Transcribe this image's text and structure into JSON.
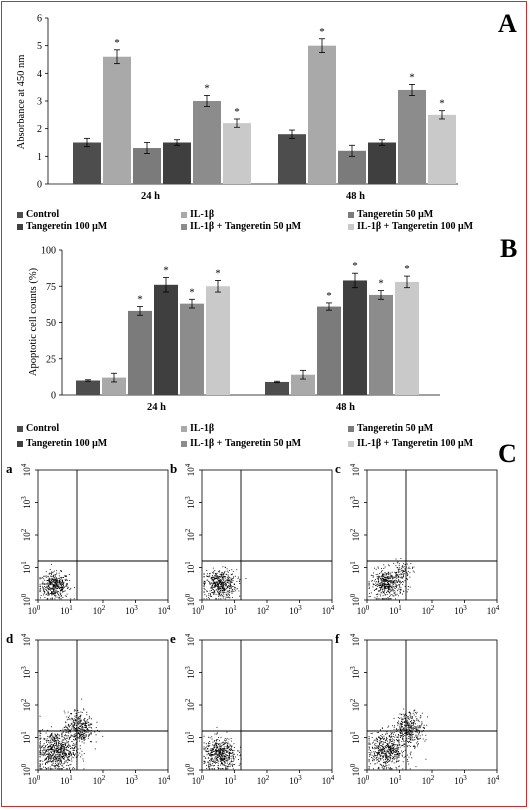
{
  "colors": {
    "frame": "#d42a2a",
    "series": [
      "#4d4d4d",
      "#a9a9a9",
      "#7b7b7b",
      "#3f3f3f",
      "#8c8c8c",
      "#c9c9c9"
    ],
    "flow_points": "#000000"
  },
  "panel_letters": {
    "a": "A",
    "b": "B",
    "c": "C"
  },
  "chart_data": [
    {
      "type": "bar",
      "panel": "A",
      "ylabel": "Absorbance at 450 nm",
      "categories": [
        "24 h",
        "48 h"
      ],
      "ylim": [
        0,
        6
      ],
      "yticks": [
        0,
        1,
        2,
        3,
        4,
        5,
        6
      ],
      "series": [
        {
          "name": "Control",
          "values": [
            1.5,
            1.8
          ],
          "errors": [
            0.15,
            0.15
          ],
          "sig": [
            "",
            ""
          ]
        },
        {
          "name": "IL-1β",
          "values": [
            4.6,
            5.0
          ],
          "errors": [
            0.25,
            0.25
          ],
          "sig": [
            "*",
            "*"
          ]
        },
        {
          "name": "Tangeretin 50 μM",
          "values": [
            1.3,
            1.2
          ],
          "errors": [
            0.2,
            0.2
          ],
          "sig": [
            "",
            ""
          ]
        },
        {
          "name": "Tangeretin 100 μM",
          "values": [
            1.5,
            1.5
          ],
          "errors": [
            0.1,
            0.1
          ],
          "sig": [
            "",
            ""
          ]
        },
        {
          "name": "IL-1β + Tangeretin 50 μM",
          "values": [
            3.0,
            3.4
          ],
          "errors": [
            0.2,
            0.2
          ],
          "sig": [
            "*",
            "*"
          ]
        },
        {
          "name": "IL-1β + Tangeretin 100 μM",
          "values": [
            2.2,
            2.5
          ],
          "errors": [
            0.15,
            0.15
          ],
          "sig": [
            "*",
            "*"
          ]
        }
      ],
      "legend_position": "bottom"
    },
    {
      "type": "bar",
      "panel": "B",
      "ylabel": "Apoptotic cell counts (%)",
      "categories": [
        "24 h",
        "48 h"
      ],
      "ylim": [
        0,
        100
      ],
      "yticks": [
        0,
        25,
        50,
        75,
        100
      ],
      "series": [
        {
          "name": "Control",
          "values": [
            10,
            9
          ],
          "errors": [
            0.5,
            0.5
          ],
          "sig": [
            "",
            ""
          ]
        },
        {
          "name": "IL-1β",
          "values": [
            12,
            14
          ],
          "errors": [
            3,
            3
          ],
          "sig": [
            "",
            ""
          ]
        },
        {
          "name": "Tangeretin 50 μM",
          "values": [
            58,
            61
          ],
          "errors": [
            3,
            2.5
          ],
          "sig": [
            "*",
            "*"
          ]
        },
        {
          "name": "Tangeretin 100 μM",
          "values": [
            76,
            79
          ],
          "errors": [
            5,
            5
          ],
          "sig": [
            "*",
            "*"
          ]
        },
        {
          "name": "IL-1β + Tangeretin 50 μM",
          "values": [
            63,
            69
          ],
          "errors": [
            3,
            3
          ],
          "sig": [
            "*",
            "*"
          ]
        },
        {
          "name": "IL-1β + Tangeretin 100 μM",
          "values": [
            75,
            78
          ],
          "errors": [
            4,
            4
          ],
          "sig": [
            "*",
            "*"
          ]
        }
      ],
      "legend_position": "bottom"
    },
    {
      "type": "scatter",
      "panel": "C",
      "subplots": [
        {
          "label": "a",
          "gate": [
            1.2,
            1.2
          ],
          "clusters": [
            {
              "cx": 0.5,
              "cy": 0.45,
              "sx": 0.22,
              "sy": 0.2,
              "n": 420
            }
          ]
        },
        {
          "label": "b",
          "gate": [
            1.2,
            1.2
          ],
          "clusters": [
            {
              "cx": 0.55,
              "cy": 0.5,
              "sx": 0.25,
              "sy": 0.22,
              "n": 480
            }
          ]
        },
        {
          "label": "c",
          "gate": [
            1.2,
            1.2
          ],
          "clusters": [
            {
              "cx": 0.6,
              "cy": 0.5,
              "sx": 0.24,
              "sy": 0.22,
              "n": 440
            },
            {
              "cx": 1.1,
              "cy": 0.9,
              "sx": 0.15,
              "sy": 0.15,
              "n": 80
            }
          ]
        },
        {
          "label": "d",
          "gate": [
            1.2,
            1.2
          ],
          "clusters": [
            {
              "cx": 0.55,
              "cy": 0.6,
              "sx": 0.3,
              "sy": 0.3,
              "n": 700
            },
            {
              "cx": 1.25,
              "cy": 1.3,
              "sx": 0.22,
              "sy": 0.25,
              "n": 380
            }
          ]
        },
        {
          "label": "e",
          "gate": [
            1.2,
            1.2
          ],
          "clusters": [
            {
              "cx": 0.55,
              "cy": 0.5,
              "sx": 0.25,
              "sy": 0.25,
              "n": 520
            }
          ]
        },
        {
          "label": "f",
          "gate": [
            1.2,
            1.2
          ],
          "clusters": [
            {
              "cx": 0.6,
              "cy": 0.6,
              "sx": 0.28,
              "sy": 0.28,
              "n": 560
            },
            {
              "cx": 1.3,
              "cy": 1.3,
              "sx": 0.22,
              "sy": 0.25,
              "n": 360
            }
          ]
        }
      ],
      "xlim": [
        0,
        4
      ],
      "ylim": [
        0,
        4
      ],
      "tick_base": "10",
      "tick_exponents": [
        "0",
        "1",
        "2",
        "3",
        "4"
      ]
    }
  ]
}
